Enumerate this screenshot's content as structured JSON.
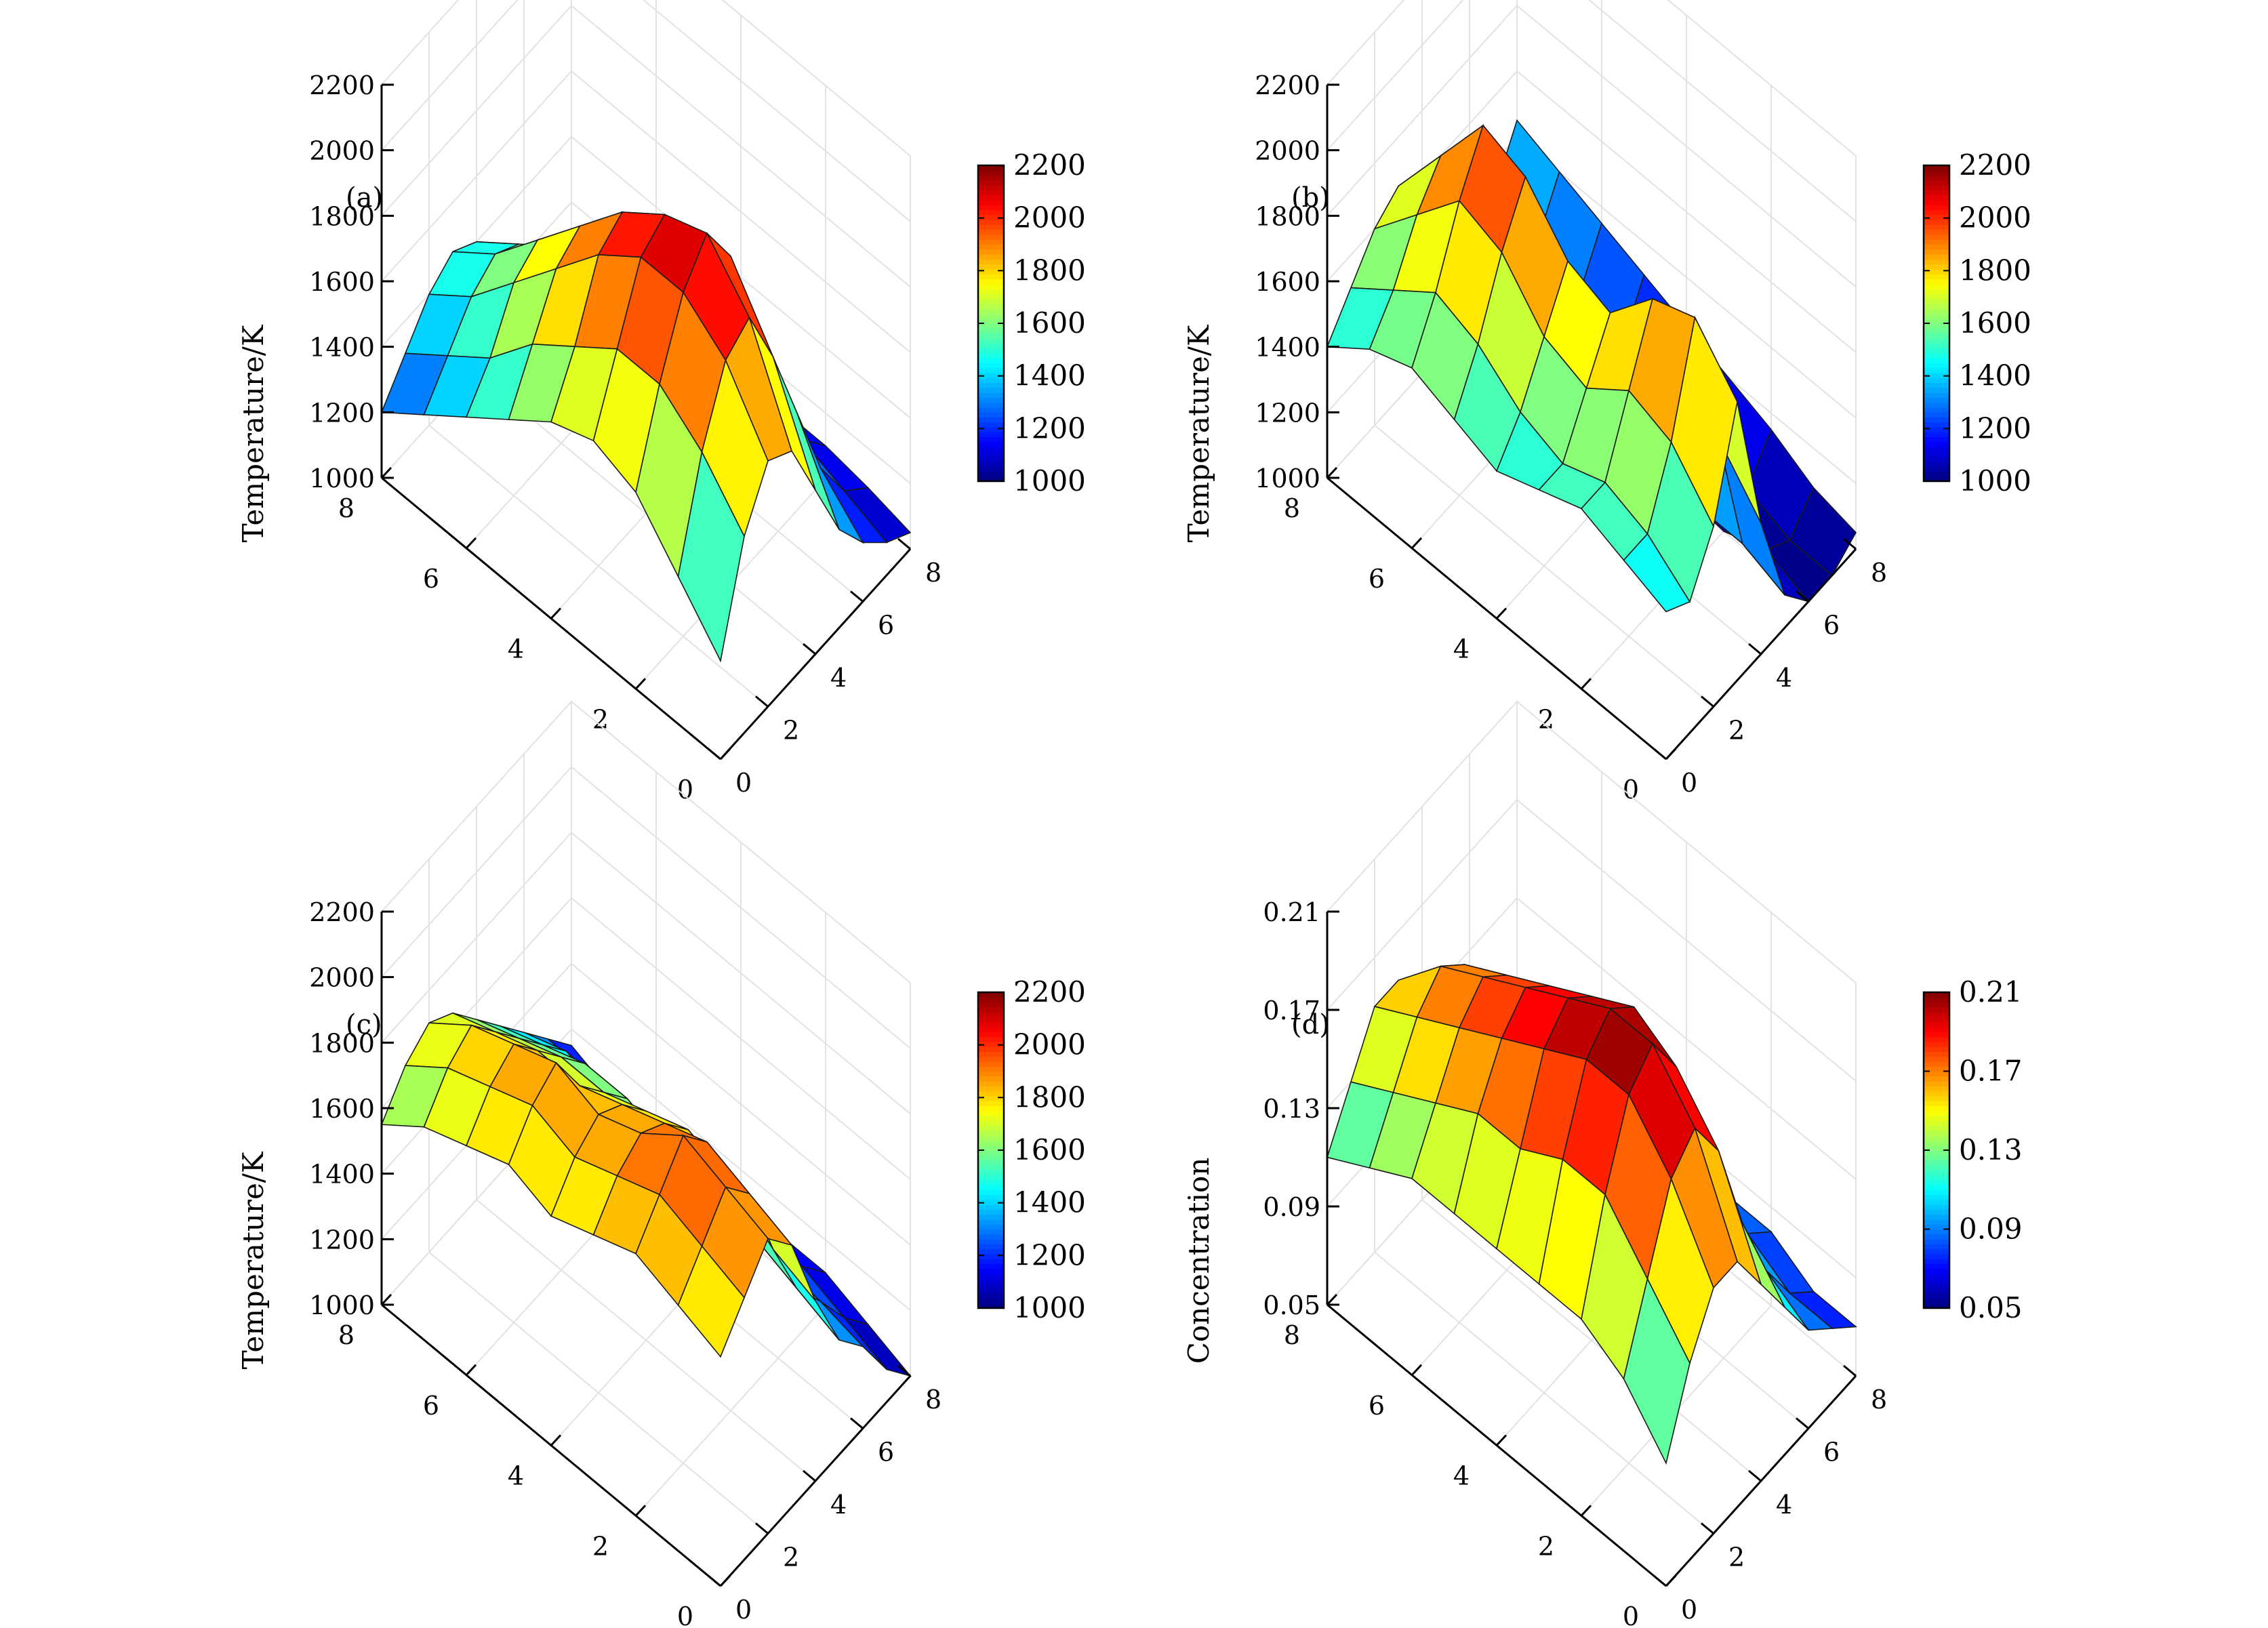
{
  "figure": {
    "background": "#ffffff"
  },
  "chart_data": [
    {
      "type": "surface",
      "panel_label": "(a)",
      "zlabel": "Temperature/K",
      "x_ticks": [
        "0",
        "2",
        "4",
        "6",
        "8"
      ],
      "y_ticks": [
        "0",
        "2",
        "4",
        "6",
        "8"
      ],
      "z_ticks": [
        "1000",
        "1200",
        "1400",
        "1600",
        "1800",
        "2000",
        "2200"
      ],
      "zlim": [
        1000,
        2200
      ],
      "colorbar": {
        "ticks": [
          "1000",
          "1200",
          "1400",
          "1600",
          "1800",
          "2000",
          "2200"
        ],
        "limits": [
          1000,
          2200
        ],
        "colormap": "jet"
      },
      "grid": true,
      "z": [
        [
          1300,
          1600,
          1750,
          1700,
          1500,
          1300,
          1180,
          1100,
          1050
        ],
        [
          1450,
          1750,
          1950,
          2000,
          1800,
          1550,
          1300,
          1150,
          1080
        ],
        [
          1600,
          1850,
          2050,
          2150,
          2000,
          1700,
          1400,
          1200,
          1100
        ],
        [
          1650,
          1850,
          2050,
          2100,
          1950,
          1650,
          1380,
          1200,
          1100
        ],
        [
          1600,
          1750,
          1950,
          2000,
          1850,
          1600,
          1350,
          1180,
          1080
        ],
        [
          1500,
          1650,
          1800,
          1850,
          1750,
          1500,
          1300,
          1150,
          1050
        ],
        [
          1400,
          1500,
          1650,
          1700,
          1600,
          1450,
          1250,
          1120,
          1020
        ],
        [
          1300,
          1400,
          1500,
          1550,
          1500,
          1350,
          1200,
          1100,
          1000
        ],
        [
          1200,
          1300,
          1400,
          1450,
          1400,
          1300,
          1150,
          1050,
          1000
        ]
      ]
    },
    {
      "type": "surface",
      "panel_label": "(b)",
      "zlabel": "Temperature/K",
      "x_ticks": [
        "0",
        "2",
        "4",
        "6",
        "8"
      ],
      "y_ticks": [
        "0",
        "2",
        "4",
        "6",
        "8"
      ],
      "z_ticks": [
        "1000",
        "1200",
        "1400",
        "1600",
        "1800",
        "2000",
        "2200"
      ],
      "zlim": [
        1000,
        2200
      ],
      "colorbar": {
        "ticks": [
          "1000",
          "1200",
          "1400",
          "1600",
          "1800",
          "2000",
          "2200"
        ],
        "limits": [
          1000,
          2200
        ],
        "colormap": "jet"
      },
      "grid": true,
      "z": [
        [
          1450,
          1400,
          1550,
          1850,
          1400,
          1100,
          1000,
          1000,
          1050
        ],
        [
          1500,
          1500,
          1700,
          2000,
          1550,
          1150,
          1050,
          1000,
          1080
        ],
        [
          1550,
          1550,
          1750,
          1950,
          1500,
          1150,
          1000,
          1050,
          1150
        ],
        [
          1500,
          1500,
          1650,
          1800,
          1450,
          1200,
          1050,
          1100,
          1200
        ],
        [
          1450,
          1550,
          1700,
          1850,
          1450,
          1150,
          1000,
          1100,
          1250
        ],
        [
          1500,
          1650,
          1850,
          2000,
          1550,
          1200,
          1050,
          1150,
          1300
        ],
        [
          1550,
          1700,
          1900,
          2050,
          1600,
          1250,
          1100,
          1200,
          1350
        ],
        [
          1500,
          1600,
          1750,
          1850,
          1500,
          1250,
          1150,
          1250,
          1400
        ],
        [
          1400,
          1500,
          1600,
          1650,
          1400,
          1200,
          1150,
          1300,
          1450
        ]
      ]
    },
    {
      "type": "surface",
      "panel_label": "(c)",
      "zlabel": "Temperature/K",
      "x_ticks": [
        "0",
        "2",
        "4",
        "6",
        "8"
      ],
      "y_ticks": [
        "0",
        "2",
        "4",
        "6",
        "8"
      ],
      "z_ticks": [
        "1000",
        "1200",
        "1400",
        "1600",
        "1800",
        "2000",
        "2200"
      ],
      "zlim": [
        1000,
        2200
      ],
      "colorbar": {
        "ticks": [
          "1000",
          "1200",
          "1400",
          "1600",
          "1800",
          "2000",
          "2200"
        ],
        "limits": [
          1000,
          2200
        ],
        "colormap": "jet"
      },
      "grid": true,
      "z": [
        [
          1700,
          1800,
          1900,
          1800,
          1550,
          1350,
          1250,
          1100,
          1000
        ],
        [
          1750,
          1850,
          1950,
          1850,
          1600,
          1400,
          1280,
          1150,
          1050
        ],
        [
          1800,
          1900,
          2000,
          1900,
          1700,
          1450,
          1300,
          1200,
          1100
        ],
        [
          1750,
          1850,
          1900,
          1850,
          1750,
          1500,
          1300,
          1180,
          1100
        ],
        [
          1700,
          1800,
          1850,
          1800,
          1700,
          1500,
          1280,
          1150,
          1080
        ],
        [
          1750,
          1850,
          1900,
          1750,
          1650,
          1550,
          1300,
          1150,
          1050
        ],
        [
          1700,
          1800,
          1850,
          1750,
          1650,
          1550,
          1350,
          1200,
          1050
        ],
        [
          1650,
          1750,
          1800,
          1700,
          1600,
          1500,
          1400,
          1250,
          1100
        ],
        [
          1550,
          1650,
          1700,
          1650,
          1550,
          1450,
          1350,
          1250,
          1150
        ]
      ]
    },
    {
      "type": "surface",
      "panel_label": "(d)",
      "zlabel": "Concentration",
      "x_ticks": [
        "0",
        "2",
        "4",
        "6",
        "8"
      ],
      "y_ticks": [
        "0",
        "2",
        "4",
        "6",
        "8"
      ],
      "z_ticks": [
        "0.05",
        "0.09",
        "0.13",
        "0.17",
        "0.21"
      ],
      "zlim": [
        0.05,
        0.21
      ],
      "colorbar": {
        "ticks": [
          "0.05",
          "0.09",
          "0.13",
          "0.17",
          "0.21"
        ],
        "limits": [
          0.05,
          0.21
        ],
        "colormap": "jet"
      },
      "grid": true,
      "z": [
        [
          0.1,
          0.13,
          0.15,
          0.15,
          0.13,
          0.11,
          0.09,
          0.08,
          0.07
        ],
        [
          0.12,
          0.15,
          0.18,
          0.19,
          0.17,
          0.13,
          0.1,
          0.08,
          0.07
        ],
        [
          0.13,
          0.17,
          0.2,
          0.21,
          0.19,
          0.15,
          0.11,
          0.09,
          0.08
        ],
        [
          0.13,
          0.17,
          0.2,
          0.21,
          0.2,
          0.16,
          0.12,
          0.09,
          0.08
        ],
        [
          0.13,
          0.16,
          0.19,
          0.2,
          0.19,
          0.16,
          0.12,
          0.09,
          0.08
        ],
        [
          0.13,
          0.16,
          0.18,
          0.19,
          0.18,
          0.15,
          0.12,
          0.09,
          0.07
        ],
        [
          0.13,
          0.15,
          0.17,
          0.18,
          0.17,
          0.14,
          0.11,
          0.08,
          0.07
        ],
        [
          0.12,
          0.14,
          0.16,
          0.17,
          0.16,
          0.13,
          0.1,
          0.08,
          0.06
        ],
        [
          0.11,
          0.13,
          0.15,
          0.15,
          0.14,
          0.12,
          0.09,
          0.07,
          0.06
        ]
      ]
    }
  ]
}
